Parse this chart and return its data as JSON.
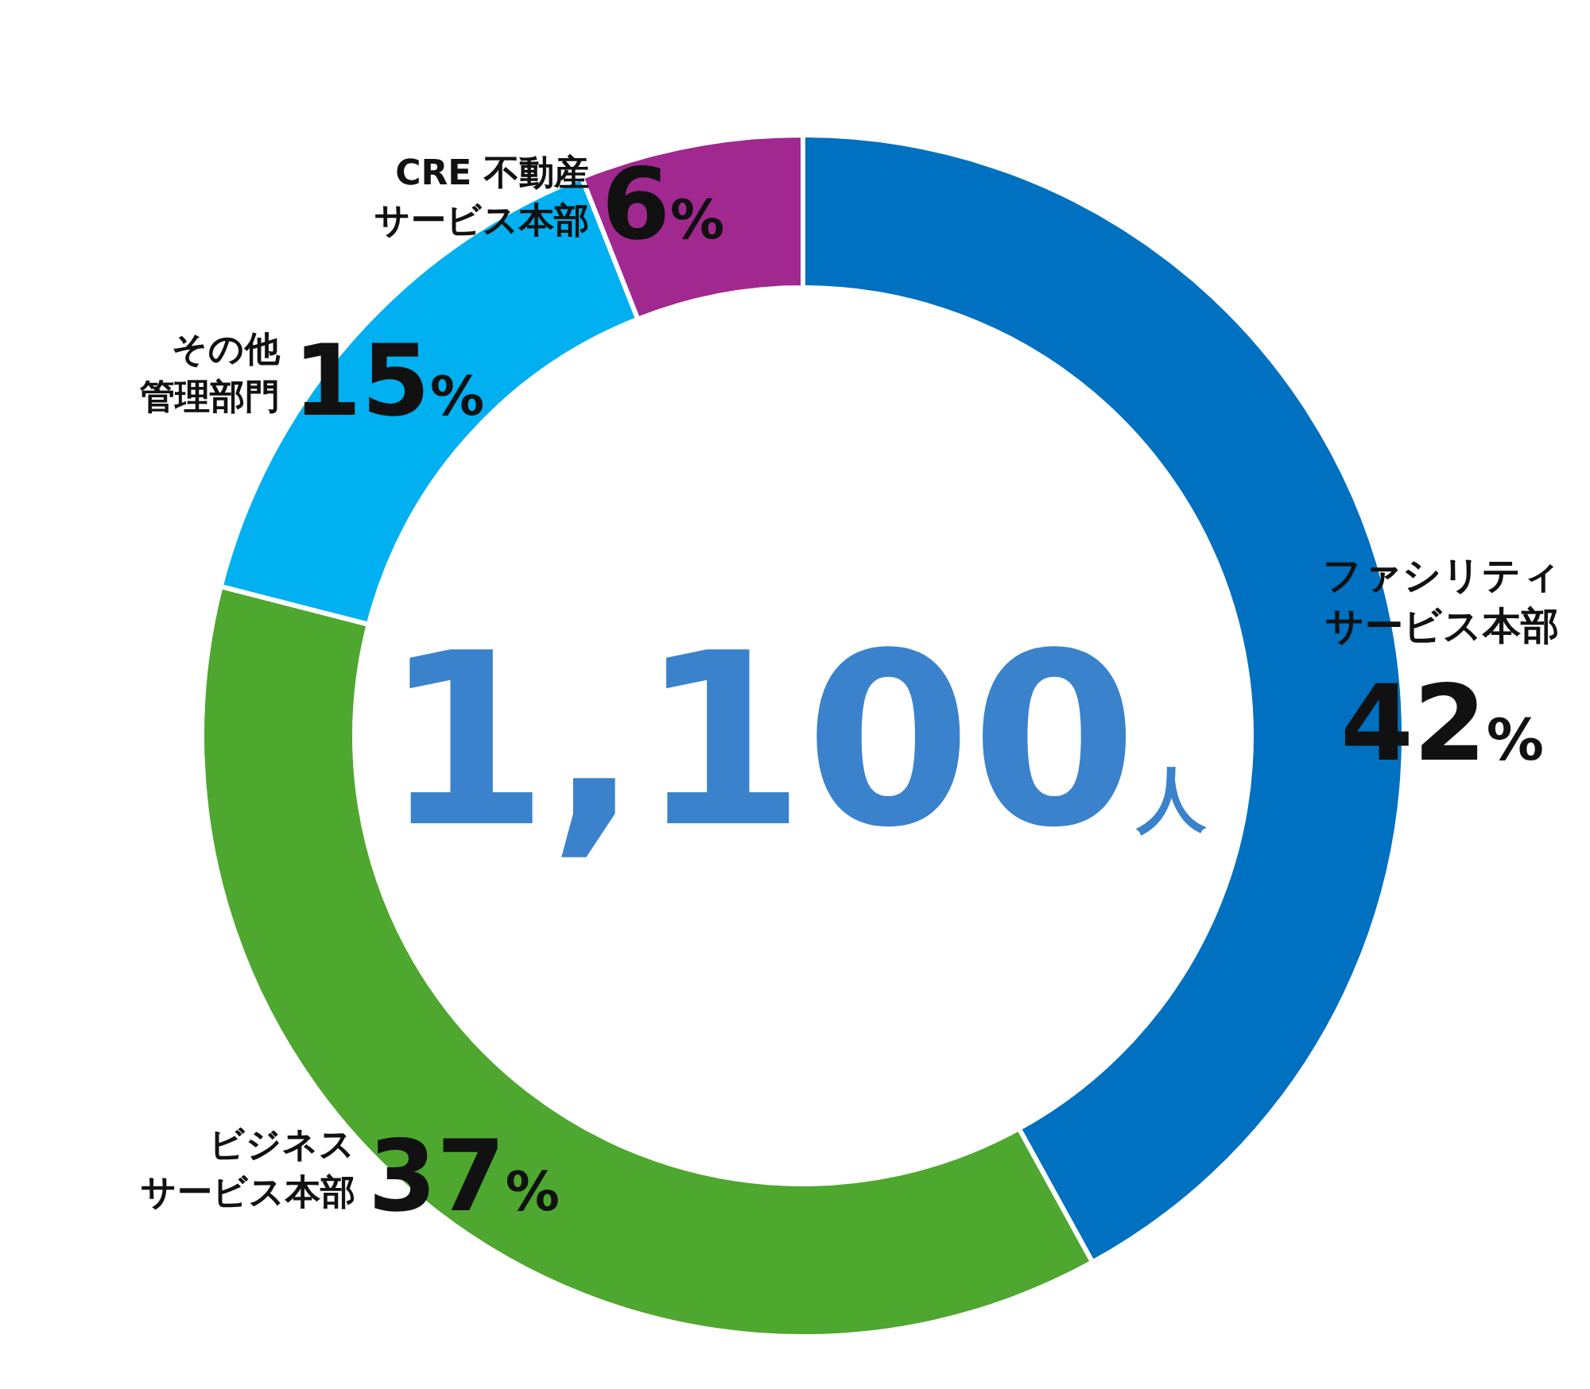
{
  "chart_data": {
    "type": "donut",
    "categories": [
      "ファシリティサービス本部",
      "ビジネスサービス本部",
      "その他管理部門",
      "CRE 不動産サービス本部"
    ],
    "values": [
      42,
      37,
      15,
      6
    ],
    "colors": [
      "#0070c0",
      "#4ea72e",
      "#00b0f0",
      "#a0288e"
    ],
    "value_labels": [
      "42%",
      "37%",
      "15%",
      "6%"
    ],
    "annotations": [
      "1,100人"
    ]
  }
}
